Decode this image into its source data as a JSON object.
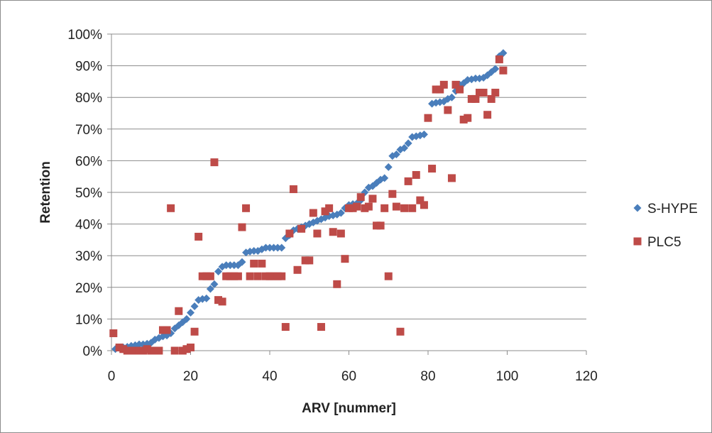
{
  "chart_data": {
    "type": "scatter",
    "title": "",
    "xlabel": "ARV [nummer]",
    "ylabel": "Retention",
    "xlim": [
      0,
      120
    ],
    "ylim": [
      0,
      100
    ],
    "x_ticks": [
      "0",
      "20",
      "40",
      "60",
      "80",
      "100",
      "120"
    ],
    "y_ticks": [
      "0%",
      "10%",
      "20%",
      "30%",
      "40%",
      "50%",
      "60%",
      "70%",
      "80%",
      "90%",
      "100%"
    ],
    "grid": "horizontal",
    "legend": "right",
    "series": [
      {
        "name": "S-HYPE",
        "color": "#4a7ebb",
        "marker": "diamond",
        "points": [
          [
            1,
            0.5
          ],
          [
            2,
            1
          ],
          [
            3,
            1
          ],
          [
            4,
            1.2
          ],
          [
            5,
            1.5
          ],
          [
            6,
            1.7
          ],
          [
            7,
            2
          ],
          [
            8,
            2
          ],
          [
            9,
            2.2
          ],
          [
            10,
            2.5
          ],
          [
            11,
            3.5
          ],
          [
            12,
            4
          ],
          [
            13,
            4.5
          ],
          [
            14,
            4.8
          ],
          [
            15,
            5.5
          ],
          [
            16,
            7
          ],
          [
            17,
            8
          ],
          [
            18,
            9
          ],
          [
            19,
            10
          ],
          [
            20,
            12
          ],
          [
            21,
            14
          ],
          [
            22,
            16
          ],
          [
            23,
            16.3
          ],
          [
            24,
            16.5
          ],
          [
            25,
            19.5
          ],
          [
            26,
            21
          ],
          [
            27,
            25
          ],
          [
            28,
            26.5
          ],
          [
            29,
            27
          ],
          [
            30,
            27
          ],
          [
            31,
            27
          ],
          [
            32,
            27
          ],
          [
            33,
            28
          ],
          [
            34,
            31
          ],
          [
            35,
            31.3
          ],
          [
            36,
            31.5
          ],
          [
            37,
            31.5
          ],
          [
            38,
            32
          ],
          [
            39,
            32.5
          ],
          [
            40,
            32.5
          ],
          [
            41,
            32.5
          ],
          [
            42,
            32.5
          ],
          [
            43,
            32.5
          ],
          [
            44,
            35.5
          ],
          [
            45,
            36.5
          ],
          [
            46,
            38
          ],
          [
            47,
            38.5
          ],
          [
            48,
            39
          ],
          [
            49,
            39.5
          ],
          [
            50,
            40
          ],
          [
            51,
            40.5
          ],
          [
            52,
            41
          ],
          [
            53,
            41.5
          ],
          [
            54,
            42
          ],
          [
            55,
            42.5
          ],
          [
            56,
            42.7
          ],
          [
            57,
            43
          ],
          [
            58,
            43.5
          ],
          [
            59,
            45
          ],
          [
            60,
            46
          ],
          [
            61,
            46.3
          ],
          [
            62,
            46.5
          ],
          [
            63,
            47.5
          ],
          [
            64,
            50
          ],
          [
            65,
            51.5
          ],
          [
            66,
            52
          ],
          [
            67,
            53
          ],
          [
            68,
            54
          ],
          [
            69,
            54.5
          ],
          [
            70,
            58
          ],
          [
            71,
            61.5
          ],
          [
            72,
            62
          ],
          [
            73,
            63.5
          ],
          [
            74,
            64
          ],
          [
            75,
            65.5
          ],
          [
            76,
            67.5
          ],
          [
            77,
            67.7
          ],
          [
            78,
            68
          ],
          [
            79,
            68.3
          ],
          [
            80,
            73.5
          ],
          [
            81,
            78
          ],
          [
            82,
            78.3
          ],
          [
            83,
            78.5
          ],
          [
            84,
            78.7
          ],
          [
            85,
            79.5
          ],
          [
            86,
            80
          ],
          [
            87,
            82
          ],
          [
            88,
            84
          ],
          [
            89,
            84.5
          ],
          [
            90,
            85.5
          ],
          [
            91,
            85.7
          ],
          [
            92,
            86
          ],
          [
            93,
            86
          ],
          [
            94,
            86.2
          ],
          [
            95,
            87
          ],
          [
            96,
            88
          ],
          [
            97,
            89
          ],
          [
            98,
            93
          ],
          [
            99,
            94
          ]
        ]
      },
      {
        "name": "PLC5",
        "color": "#be4b48",
        "marker": "square",
        "points": [
          [
            0.5,
            5.5
          ],
          [
            2,
            1
          ],
          [
            3,
            0.5
          ],
          [
            4,
            0
          ],
          [
            5,
            0
          ],
          [
            6,
            0
          ],
          [
            7,
            0
          ],
          [
            8,
            0
          ],
          [
            9,
            0.5
          ],
          [
            10,
            0
          ],
          [
            11,
            0
          ],
          [
            12,
            0
          ],
          [
            13,
            6.5
          ],
          [
            14,
            6.5
          ],
          [
            15,
            45
          ],
          [
            16,
            0
          ],
          [
            17,
            12.5
          ],
          [
            18,
            0
          ],
          [
            19,
            0.5
          ],
          [
            20,
            1
          ],
          [
            21,
            6
          ],
          [
            22,
            36
          ],
          [
            23,
            23.5
          ],
          [
            24,
            23.5
          ],
          [
            25,
            23.5
          ],
          [
            26,
            59.5
          ],
          [
            27,
            16
          ],
          [
            28,
            15.5
          ],
          [
            29,
            23.5
          ],
          [
            30,
            23.5
          ],
          [
            31,
            23.5
          ],
          [
            32,
            23.5
          ],
          [
            33,
            39
          ],
          [
            34,
            45
          ],
          [
            35,
            23.5
          ],
          [
            36,
            27.5
          ],
          [
            37,
            23.5
          ],
          [
            38,
            27.5
          ],
          [
            39,
            23.5
          ],
          [
            40,
            23.5
          ],
          [
            41,
            23.5
          ],
          [
            42,
            23.5
          ],
          [
            43,
            23.5
          ],
          [
            44,
            7.5
          ],
          [
            45,
            37
          ],
          [
            46,
            51
          ],
          [
            47,
            25.5
          ],
          [
            48,
            38.5
          ],
          [
            49,
            28.5
          ],
          [
            50,
            28.5
          ],
          [
            51,
            43.5
          ],
          [
            52,
            37
          ],
          [
            53,
            7.5
          ],
          [
            54,
            44
          ],
          [
            55,
            45
          ],
          [
            56,
            37.5
          ],
          [
            57,
            21
          ],
          [
            58,
            37
          ],
          [
            59,
            29
          ],
          [
            60,
            45
          ],
          [
            61,
            45
          ],
          [
            62,
            45.5
          ],
          [
            63,
            48.5
          ],
          [
            64,
            45
          ],
          [
            65,
            45.5
          ],
          [
            66,
            48
          ],
          [
            67,
            39.5
          ],
          [
            68,
            39.5
          ],
          [
            69,
            45
          ],
          [
            70,
            23.5
          ],
          [
            71,
            49.5
          ],
          [
            72,
            45.5
          ],
          [
            73,
            6
          ],
          [
            74,
            45
          ],
          [
            75,
            53.5
          ],
          [
            76,
            45
          ],
          [
            77,
            55.5
          ],
          [
            78,
            47.5
          ],
          [
            79,
            46
          ],
          [
            80,
            73.5
          ],
          [
            81,
            57.5
          ],
          [
            82,
            82.5
          ],
          [
            83,
            82.5
          ],
          [
            84,
            84
          ],
          [
            85,
            76
          ],
          [
            86,
            54.5
          ],
          [
            87,
            84
          ],
          [
            88,
            82.5
          ],
          [
            89,
            73
          ],
          [
            90,
            73.5
          ],
          [
            91,
            79.5
          ],
          [
            92,
            79.5
          ],
          [
            93,
            81.5
          ],
          [
            94,
            81.5
          ],
          [
            95,
            74.5
          ],
          [
            96,
            79.5
          ],
          [
            97,
            81.5
          ],
          [
            98,
            92
          ],
          [
            99,
            88.5
          ]
        ]
      }
    ]
  }
}
